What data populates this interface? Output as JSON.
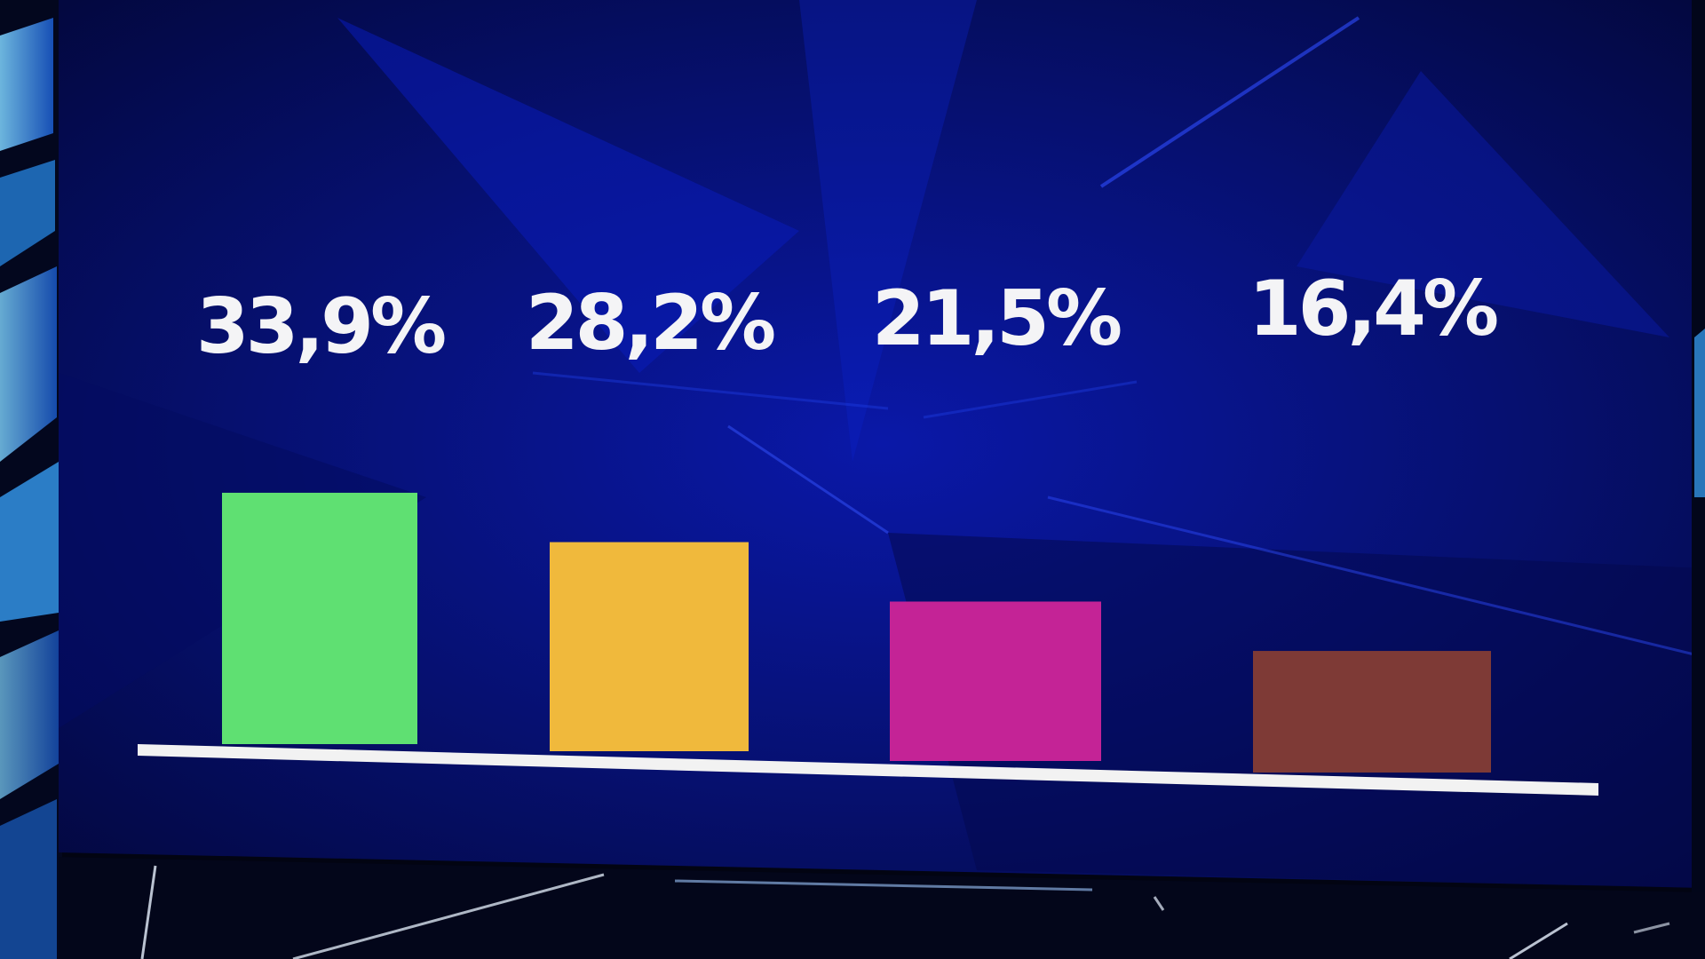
{
  "colors": {
    "screen_background": "#050a52",
    "baseline": "#f2f2f2",
    "label": "#f4f4f6",
    "studio_light": "#3fa9ff"
  },
  "chart_data": {
    "type": "bar",
    "title": "",
    "xlabel": "",
    "ylabel": "",
    "ylim": [
      0,
      35
    ],
    "grid": false,
    "legend": "none",
    "values": [
      33.9,
      28.2,
      21.5,
      16.4
    ],
    "labels": [
      "33,9%",
      "28,2%",
      "21,5%",
      "16,4%"
    ],
    "colors": [
      "#5fe072",
      "#f0b93c",
      "#c42396",
      "#7e3a36"
    ]
  }
}
